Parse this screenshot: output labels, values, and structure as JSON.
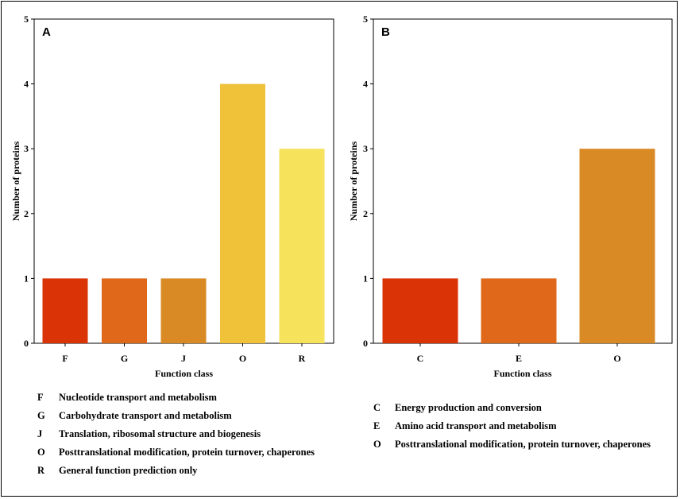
{
  "chart_data": [
    {
      "type": "bar",
      "panel_label": "A",
      "categories": [
        "F",
        "G",
        "J",
        "O",
        "R"
      ],
      "values": [
        1,
        1,
        1,
        4,
        3
      ],
      "colors": [
        "#da3305",
        "#e0681a",
        "#d98a24",
        "#efc23a",
        "#f6e25b"
      ],
      "xlabel": "Function class",
      "ylabel": "Number of proteins",
      "ylim": [
        0,
        5
      ],
      "yticks": [
        "0",
        "1",
        "2",
        "3",
        "4",
        "5"
      ],
      "legend": [
        {
          "code": "F",
          "description": "Nucleotide transport and metabolism"
        },
        {
          "code": "G",
          "description": "Carbohydrate transport and metabolism"
        },
        {
          "code": "J",
          "description": "Translation, ribosomal structure and biogenesis"
        },
        {
          "code": "O",
          "description": "Posttranslational modification, protein turnover, chaperones"
        },
        {
          "code": "R",
          "description": "General function prediction only"
        }
      ]
    },
    {
      "type": "bar",
      "panel_label": "B",
      "categories": [
        "C",
        "E",
        "O"
      ],
      "values": [
        1,
        1,
        3
      ],
      "colors": [
        "#da3305",
        "#e0681a",
        "#d98a24"
      ],
      "xlabel": "Function class",
      "ylabel": "Number of proteins",
      "ylim": [
        0,
        5
      ],
      "yticks": [
        "0",
        "1",
        "2",
        "3",
        "4",
        "5"
      ],
      "legend": [
        {
          "code": "C",
          "description": "Energy production and conversion"
        },
        {
          "code": "E",
          "description": "Amino acid transport and metabolism"
        },
        {
          "code": "O",
          "description": "Posttranslational modification, protein turnover, chaperones"
        }
      ]
    }
  ]
}
